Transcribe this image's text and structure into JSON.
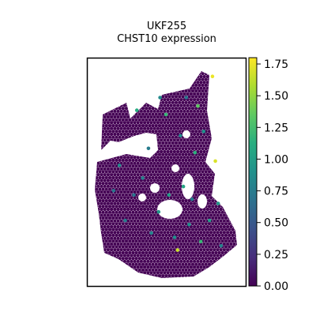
{
  "chart_data": {
    "type": "scatter",
    "title_line1": "UKF255",
    "title_line2": "CHST10 expression",
    "xlabel": "",
    "ylabel": "",
    "colorbar": {
      "colormap": "viridis",
      "range": [
        0.0,
        1.8
      ],
      "ticks": [
        "0.00",
        "0.25",
        "0.50",
        "0.75",
        "1.00",
        "1.25",
        "1.50",
        "1.75"
      ]
    },
    "background_value": 0.0,
    "notable_spots": [
      {
        "x": 0.82,
        "y": 0.96,
        "value": 1.75
      },
      {
        "x": 0.84,
        "y": 0.56,
        "value": 1.7
      },
      {
        "x": 0.58,
        "y": 0.14,
        "value": 1.65
      },
      {
        "x": 0.72,
        "y": 0.82,
        "value": 1.35
      },
      {
        "x": 0.5,
        "y": 0.78,
        "value": 1.2
      },
      {
        "x": 0.3,
        "y": 0.8,
        "value": 1.1
      },
      {
        "x": 0.52,
        "y": 0.4,
        "value": 1.0
      },
      {
        "x": 0.7,
        "y": 0.6,
        "value": 1.15
      },
      {
        "x": 0.62,
        "y": 0.44,
        "value": 1.05
      },
      {
        "x": 0.45,
        "y": 0.32,
        "value": 0.95
      },
      {
        "x": 0.74,
        "y": 0.18,
        "value": 1.2
      },
      {
        "x": 0.66,
        "y": 0.26,
        "value": 0.9
      },
      {
        "x": 0.18,
        "y": 0.54,
        "value": 0.85
      },
      {
        "x": 0.4,
        "y": 0.22,
        "value": 0.8
      },
      {
        "x": 0.86,
        "y": 0.36,
        "value": 0.95
      },
      {
        "x": 0.6,
        "y": 0.68,
        "value": 0.85
      },
      {
        "x": 0.22,
        "y": 0.28,
        "value": 0.75
      },
      {
        "x": 0.76,
        "y": 0.7,
        "value": 0.9
      },
      {
        "x": 0.34,
        "y": 0.48,
        "value": 0.8
      },
      {
        "x": 0.8,
        "y": 0.28,
        "value": 1.0
      },
      {
        "x": 0.28,
        "y": 0.4,
        "value": 0.7
      },
      {
        "x": 0.56,
        "y": 0.2,
        "value": 0.9
      },
      {
        "x": 0.68,
        "y": 0.38,
        "value": 0.75
      },
      {
        "x": 0.46,
        "y": 0.86,
        "value": 0.85
      },
      {
        "x": 0.88,
        "y": 0.16,
        "value": 0.8
      },
      {
        "x": 0.14,
        "y": 0.42,
        "value": 0.7
      },
      {
        "x": 0.38,
        "y": 0.62,
        "value": 0.75
      },
      {
        "x": 0.64,
        "y": 0.86,
        "value": 0.7
      }
    ]
  }
}
